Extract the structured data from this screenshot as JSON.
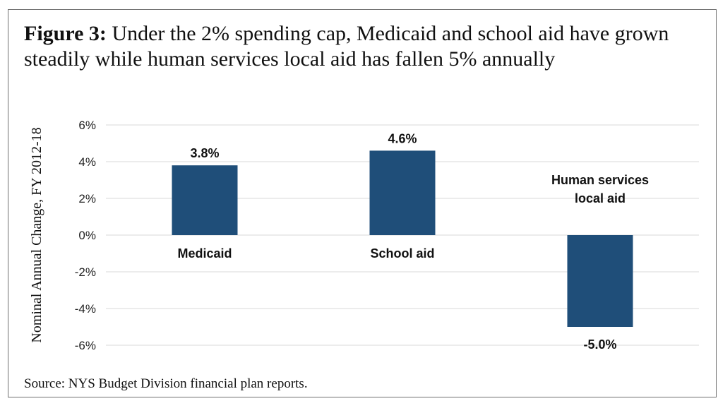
{
  "figure": {
    "title_prefix": "Figure 3:",
    "title_text": " Under the 2% spending cap, Medicaid and school aid have grown steadily while human services local aid has fallen 5% annually",
    "source": "Source: NYS Budget Division financial plan reports."
  },
  "chart_data": {
    "type": "bar",
    "categories": [
      "Medicaid",
      "School aid",
      "Human services local aid"
    ],
    "category_label_lines": [
      [
        "Medicaid"
      ],
      [
        "School aid"
      ],
      [
        "Human services",
        "local aid"
      ]
    ],
    "values": [
      3.8,
      4.6,
      -5.0
    ],
    "data_labels": [
      "3.8%",
      "4.6%",
      "-5.0%"
    ],
    "ylabel": "Nominal Annual Change, FY 2012-18",
    "ylim": [
      -6,
      6
    ],
    "yticks": [
      6,
      4,
      2,
      0,
      -2,
      -4,
      -6
    ],
    "ytick_labels": [
      "6%",
      "4%",
      "2%",
      "0%",
      "-2%",
      "-4%",
      "-6%"
    ],
    "grid": true,
    "bar_color": "#1f4e79",
    "grid_color": "#d9d9d9"
  }
}
